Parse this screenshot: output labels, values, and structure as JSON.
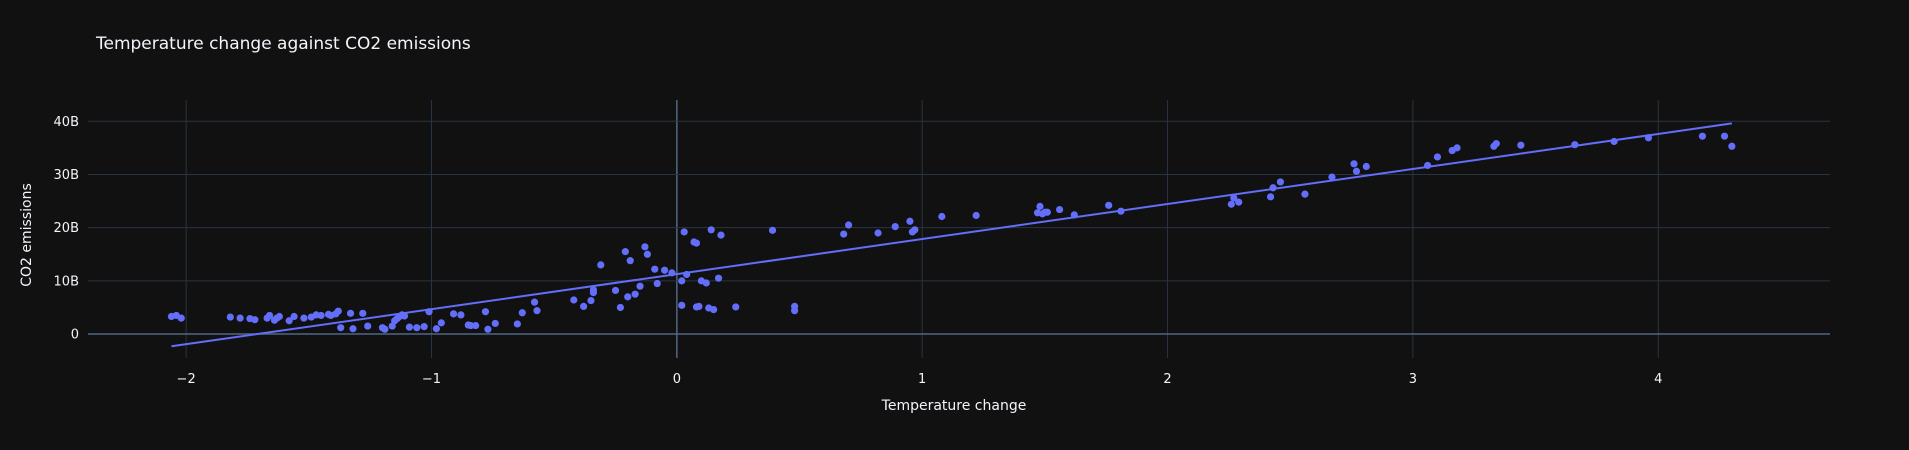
{
  "chart_data": {
    "type": "scatter",
    "title": "Temperature change against CO2 emissions",
    "xlabel": "Temperature change",
    "ylabel": "CO2 emissions",
    "xlim": [
      -2.4,
      4.7
    ],
    "ylim": [
      -4.5,
      44
    ],
    "x_ticks": [
      -2,
      -1,
      0,
      1,
      2,
      3,
      4
    ],
    "x_tick_labels": [
      "−2",
      "−1",
      "0",
      "1",
      "2",
      "3",
      "4"
    ],
    "y_ticks": [
      0,
      10,
      20,
      30,
      40
    ],
    "y_tick_labels": [
      "0",
      "10B",
      "20B",
      "30B",
      "40B"
    ],
    "grid": true,
    "legend": false,
    "colors": {
      "background": "#111111",
      "grid": "#283442",
      "zeroline": "#506784",
      "marker": "#636efa",
      "text": "#f2f5fa"
    },
    "series": [
      {
        "type": "scatter",
        "x": [
          -2.06,
          -2.04,
          -2.02,
          -1.82,
          -1.78,
          -1.74,
          -1.72,
          -1.67,
          -1.66,
          -1.64,
          -1.63,
          -1.62,
          -1.58,
          -1.56,
          -1.52,
          -1.49,
          -1.47,
          -1.45,
          -1.42,
          -1.41,
          -1.39,
          -1.38,
          -1.37,
          -1.33,
          -1.32,
          -1.28,
          -1.26,
          -1.2,
          -1.19,
          -1.16,
          -1.15,
          -1.14,
          -1.13,
          -1.12,
          -1.11,
          -1.09,
          -1.06,
          -1.03,
          -1.01,
          -0.98,
          -0.96,
          -0.91,
          -0.88,
          -0.85,
          -0.84,
          -0.82,
          -0.78,
          -0.77,
          -0.74,
          -0.65,
          -0.63,
          -0.58,
          -0.57,
          -0.42,
          -0.38,
          -0.35,
          -0.34,
          -0.34,
          -0.31,
          -0.25,
          -0.23,
          -0.21,
          -0.2,
          -0.19,
          -0.17,
          -0.15,
          -0.13,
          -0.12,
          -0.09,
          -0.08,
          -0.05,
          -0.02,
          0.02,
          0.02,
          0.03,
          0.04,
          0.07,
          0.08,
          0.08,
          0.09,
          0.1,
          0.12,
          0.13,
          0.14,
          0.15,
          0.17,
          0.18,
          0.24,
          0.39,
          0.48,
          0.48,
          0.68,
          0.7,
          0.82,
          0.89,
          0.95,
          0.96,
          0.97,
          1.08,
          1.22,
          1.47,
          1.48,
          1.49,
          1.5,
          1.51,
          1.56,
          1.62,
          1.76,
          1.81,
          2.26,
          2.27,
          2.29,
          2.42,
          2.43,
          2.46,
          2.56,
          2.67,
          2.76,
          2.77,
          2.81,
          3.06,
          3.1,
          3.16,
          3.18,
          3.33,
          3.34,
          3.44,
          3.66,
          3.82,
          3.96,
          4.18,
          4.27,
          4.3
        ],
        "y": [
          3.3,
          3.5,
          3.0,
          3.2,
          3.0,
          2.9,
          2.7,
          3.0,
          3.5,
          2.6,
          3.0,
          3.3,
          2.5,
          3.3,
          3.0,
          3.2,
          3.6,
          3.5,
          3.7,
          3.5,
          3.8,
          4.3,
          1.2,
          3.9,
          1.0,
          3.9,
          1.5,
          1.2,
          0.9,
          1.5,
          2.5,
          2.9,
          3.3,
          3.6,
          3.4,
          1.3,
          1.2,
          1.4,
          4.2,
          1.0,
          2.1,
          3.8,
          3.6,
          1.7,
          1.6,
          1.6,
          4.2,
          0.9,
          2.0,
          1.9,
          4.0,
          6.0,
          4.4,
          6.4,
          5.2,
          6.3,
          7.8,
          8.3,
          13.0,
          8.2,
          5.0,
          15.5,
          7.0,
          13.8,
          7.5,
          9.0,
          16.4,
          15.0,
          12.2,
          9.5,
          12.0,
          11.5,
          5.4,
          10.0,
          19.2,
          11.2,
          17.3,
          17.1,
          5.1,
          5.2,
          10.0,
          9.6,
          4.9,
          19.6,
          4.6,
          10.5,
          18.6,
          5.1,
          19.5,
          4.4,
          5.2,
          18.8,
          20.5,
          19.0,
          20.2,
          21.2,
          19.2,
          19.6,
          22.1,
          22.3,
          22.8,
          24.0,
          22.6,
          22.9,
          22.9,
          23.4,
          22.4,
          24.2,
          23.1,
          24.4,
          25.6,
          24.8,
          25.8,
          27.5,
          28.6,
          26.3,
          29.5,
          32.0,
          30.6,
          31.5,
          31.7,
          33.3,
          34.5,
          35.0,
          35.3,
          35.8,
          35.5,
          35.6,
          36.2,
          36.9,
          37.2,
          37.2,
          35.3
        ]
      },
      {
        "type": "line",
        "x": [
          -2.06,
          4.3
        ],
        "y": [
          -2.3,
          39.6
        ]
      }
    ]
  }
}
